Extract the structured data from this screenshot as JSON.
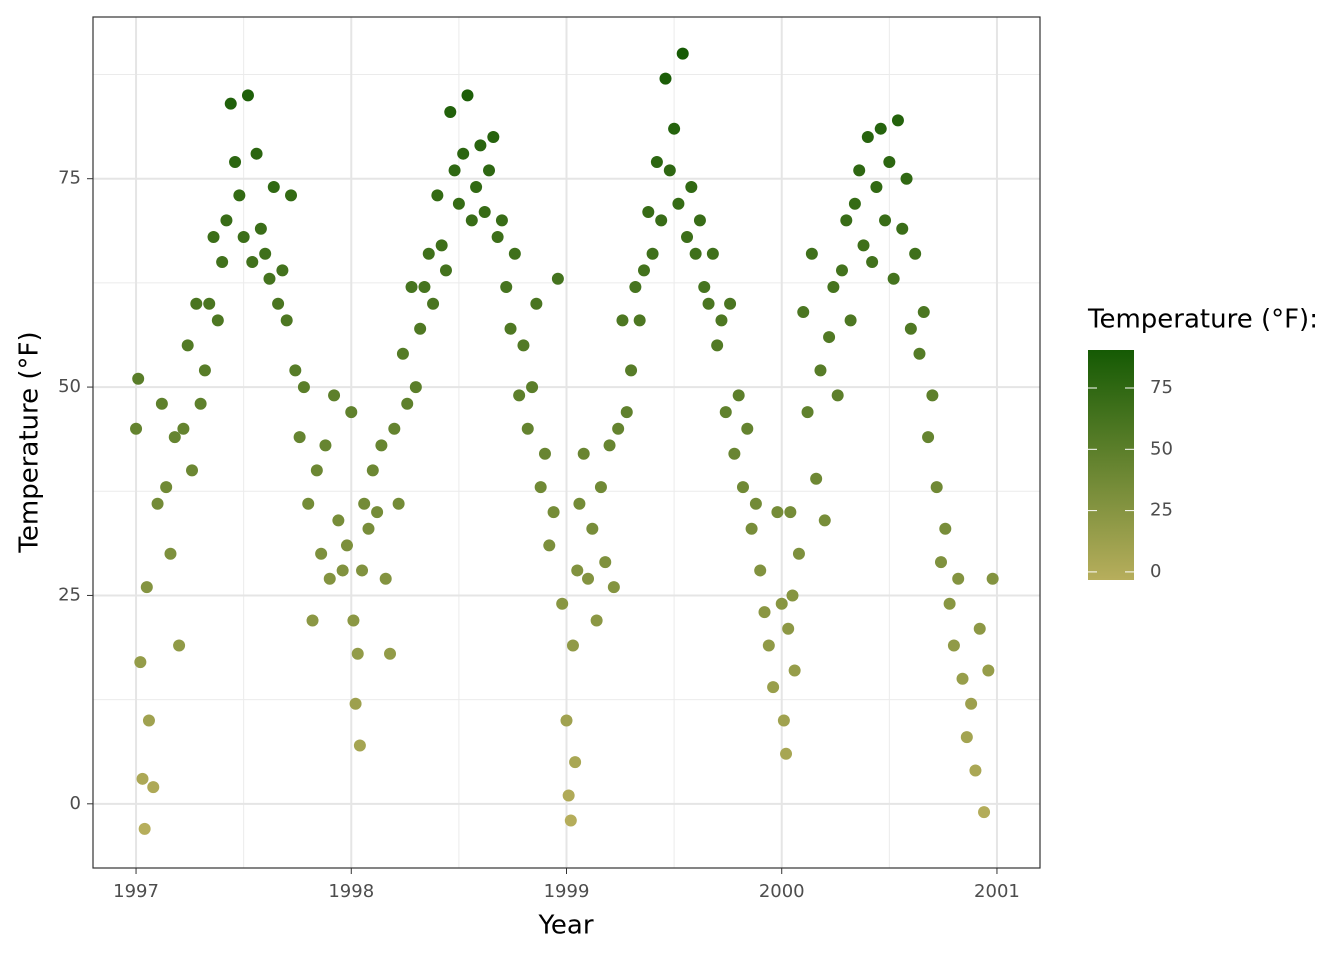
{
  "chart_data": {
    "type": "scatter",
    "x_label": "Year",
    "y_label": "Temperature (°F)",
    "xlim": [
      1996.8,
      2001.2
    ],
    "xticks": [
      1997,
      1998,
      1999,
      2000,
      2001
    ],
    "x_minor_grid": [
      1997.5,
      1998.5,
      1999.5,
      2000.5
    ],
    "ylim": [
      -7.7,
      94.4
    ],
    "yticks": [
      0,
      25,
      50,
      75
    ],
    "y_minor_grid": [
      12.5,
      37.5,
      62.5,
      87.5
    ],
    "grid": true,
    "color_scale": {
      "title": "Temperature (°F):",
      "low": "#b7ae5c",
      "high": "#155a04",
      "limits": [
        -3.3,
        90.5
      ],
      "ticks": [
        0,
        25,
        50,
        75
      ]
    },
    "x": [
      1997,
      1997.01,
      1997.02,
      1997.03,
      1997.04,
      1997.05,
      1997.06,
      1997.08,
      1997.1,
      1997.12,
      1997.14,
      1997.16,
      1997.18,
      1997.2,
      1997.22,
      1997.24,
      1997.26,
      1997.28,
      1997.3,
      1997.32,
      1997.34,
      1997.36,
      1997.38,
      1997.4,
      1997.42,
      1997.44,
      1997.46,
      1997.48,
      1997.5,
      1997.52,
      1997.54,
      1997.56,
      1997.58,
      1997.6,
      1997.62,
      1997.64,
      1997.66,
      1997.68,
      1997.7,
      1997.72,
      1997.74,
      1997.76,
      1997.78,
      1997.8,
      1997.82,
      1997.84,
      1997.86,
      1997.88,
      1997.9,
      1997.92,
      1997.94,
      1997.96,
      1997.98,
      1998,
      1998.01,
      1998.02,
      1998.03,
      1998.04,
      1998.05,
      1998.06,
      1998.08,
      1998.1,
      1998.12,
      1998.14,
      1998.16,
      1998.18,
      1998.2,
      1998.22,
      1998.24,
      1998.26,
      1998.28,
      1998.3,
      1998.32,
      1998.34,
      1998.36,
      1998.38,
      1998.4,
      1998.42,
      1998.44,
      1998.46,
      1998.48,
      1998.5,
      1998.52,
      1998.54,
      1998.56,
      1998.58,
      1998.6,
      1998.62,
      1998.64,
      1998.66,
      1998.68,
      1998.7,
      1998.72,
      1998.74,
      1998.76,
      1998.78,
      1998.8,
      1998.82,
      1998.84,
      1998.86,
      1998.88,
      1998.9,
      1998.92,
      1998.94,
      1998.96,
      1998.98,
      1999,
      1999.01,
      1999.02,
      1999.03,
      1999.04,
      1999.05,
      1999.06,
      1999.08,
      1999.1,
      1999.12,
      1999.14,
      1999.16,
      1999.18,
      1999.2,
      1999.22,
      1999.24,
      1999.26,
      1999.28,
      1999.3,
      1999.32,
      1999.34,
      1999.36,
      1999.38,
      1999.4,
      1999.42,
      1999.44,
      1999.46,
      1999.48,
      1999.5,
      1999.52,
      1999.54,
      1999.56,
      1999.58,
      1999.6,
      1999.62,
      1999.64,
      1999.66,
      1999.68,
      1999.7,
      1999.72,
      1999.74,
      1999.76,
      1999.78,
      1999.8,
      1999.82,
      1999.84,
      1999.86,
      1999.88,
      1999.9,
      1999.92,
      1999.94,
      1999.96,
      1999.98,
      2000,
      2000.01,
      2000.02,
      2000.03,
      2000.04,
      2000.05,
      2000.06,
      2000.08,
      2000.1,
      2000.12,
      2000.14,
      2000.16,
      2000.18,
      2000.2,
      2000.22,
      2000.24,
      2000.26,
      2000.28,
      2000.3,
      2000.32,
      2000.34,
      2000.36,
      2000.38,
      2000.4,
      2000.42,
      2000.44,
      2000.46,
      2000.48,
      2000.5,
      2000.52,
      2000.54,
      2000.56,
      2000.58,
      2000.6,
      2000.62,
      2000.64,
      2000.66,
      2000.68,
      2000.7,
      2000.72,
      2000.74,
      2000.76,
      2000.78,
      2000.8,
      2000.82,
      2000.84,
      2000.86,
      2000.88,
      2000.9,
      2000.92,
      2000.94,
      2000.96,
      2000.98
    ],
    "values": [
      45,
      51,
      17,
      3,
      -3,
      26,
      10,
      2,
      36,
      48,
      38,
      30,
      44,
      19,
      45,
      55,
      40,
      60,
      48,
      52,
      60,
      68,
      58,
      65,
      70,
      84,
      77,
      73,
      68,
      85,
      65,
      78,
      69,
      66,
      63,
      74,
      60,
      64,
      58,
      73,
      52,
      44,
      50,
      36,
      22,
      40,
      30,
      43,
      27,
      49,
      34,
      28,
      31,
      47,
      22,
      12,
      18,
      7,
      28,
      36,
      33,
      40,
      35,
      43,
      27,
      18,
      45,
      36,
      54,
      48,
      62,
      50,
      57,
      62,
      66,
      60,
      73,
      67,
      64,
      83,
      76,
      72,
      78,
      85,
      70,
      74,
      79,
      71,
      76,
      80,
      68,
      70,
      62,
      57,
      66,
      49,
      55,
      45,
      50,
      60,
      38,
      42,
      31,
      35,
      63,
      24,
      10,
      1,
      -2,
      19,
      5,
      28,
      36,
      42,
      27,
      33,
      22,
      38,
      29,
      43,
      26,
      45,
      58,
      47,
      52,
      62,
      58,
      64,
      71,
      66,
      77,
      70,
      87,
      76,
      81,
      72,
      90,
      68,
      74,
      66,
      70,
      62,
      60,
      66,
      55,
      58,
      47,
      60,
      42,
      49,
      38,
      45,
      33,
      36,
      28,
      23,
      19,
      14,
      35,
      24,
      10,
      6,
      21,
      35,
      25,
      16,
      30,
      59,
      47,
      66,
      39,
      52,
      34,
      56,
      62,
      49,
      64,
      70,
      58,
      72,
      76,
      67,
      80,
      65,
      74,
      81,
      70,
      77,
      63,
      82,
      69,
      75,
      57,
      66,
      54,
      59,
      44,
      49,
      38,
      29,
      33,
      24,
      19,
      27,
      15,
      8,
      12,
      4,
      21,
      -1,
      16,
      27
    ]
  }
}
